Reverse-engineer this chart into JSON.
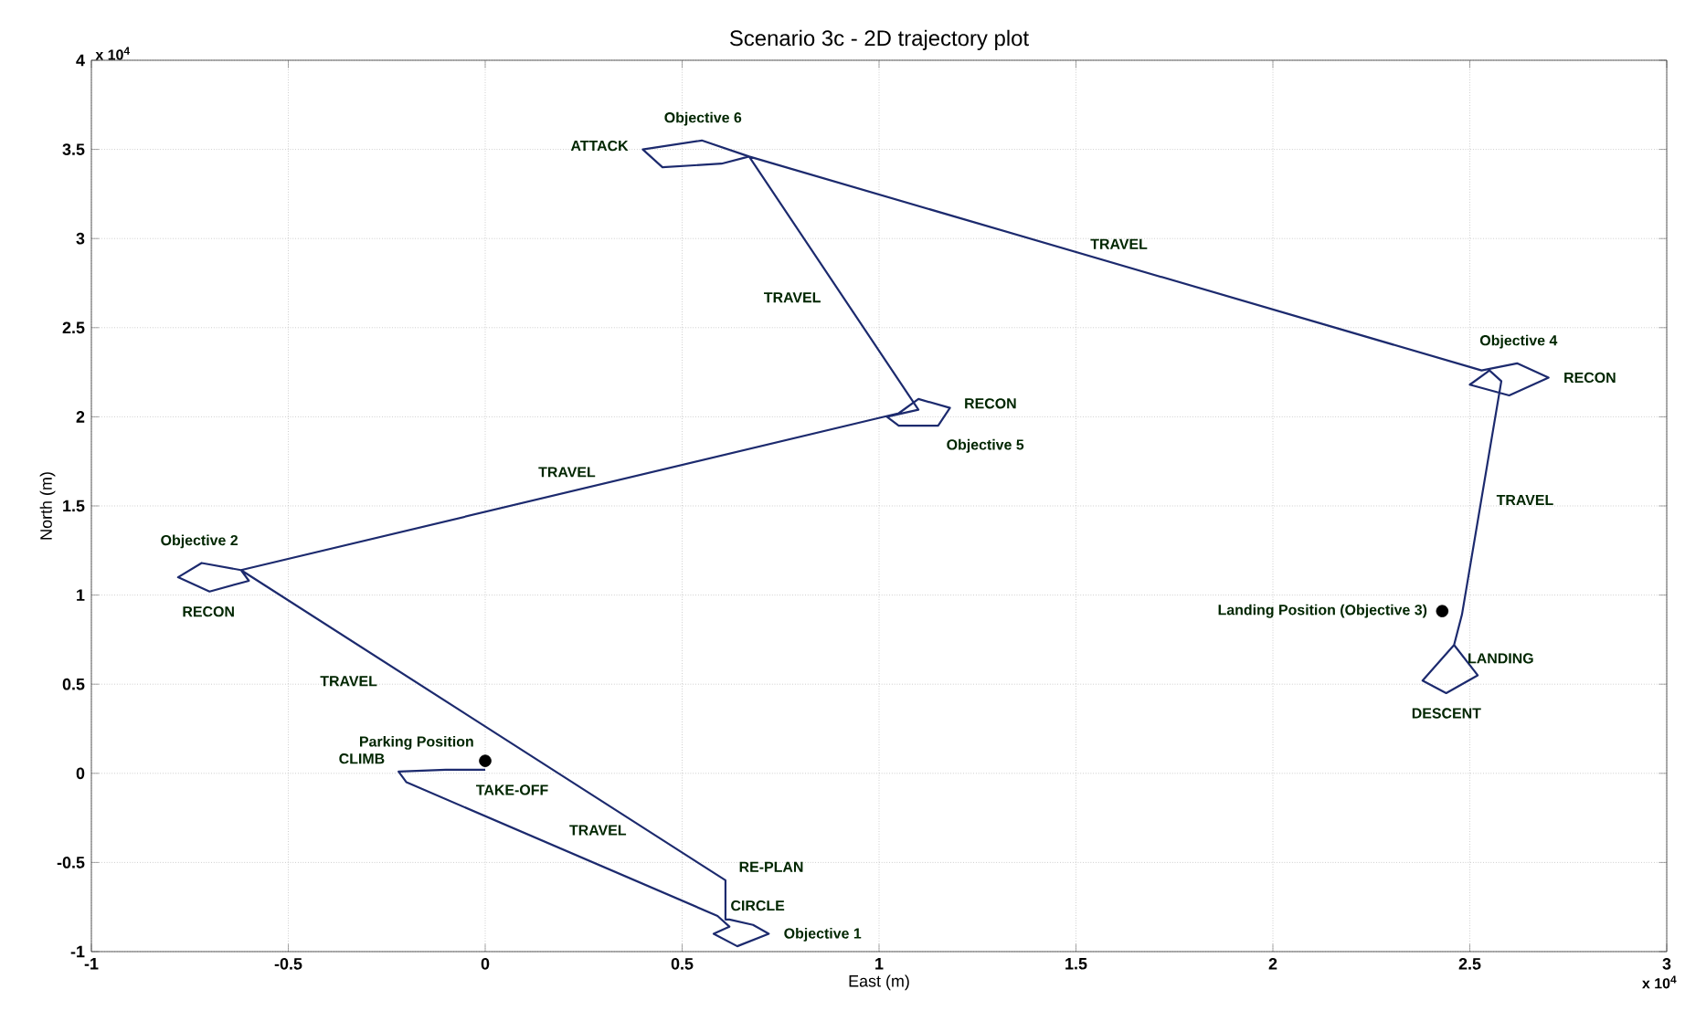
{
  "chart_data": {
    "type": "line",
    "title": "Scenario 3c - 2D trajectory plot",
    "xlabel": "East (m)",
    "ylabel": "North (m)",
    "xlim": [
      -1,
      3
    ],
    "ylim": [
      -1,
      4
    ],
    "xticks": [
      -1,
      -0.5,
      0,
      0.5,
      1,
      1.5,
      2,
      2.5,
      3
    ],
    "yticks": [
      -1,
      -0.5,
      0,
      0.5,
      1,
      1.5,
      2,
      2.5,
      3,
      3.5,
      4
    ],
    "grid": true,
    "series": [
      {
        "color": "#1c2a6e",
        "x": [
          0.0,
          -0.1,
          -0.22,
          -0.2,
          0.59,
          0.62,
          0.58,
          0.64,
          0.72,
          0.68,
          0.62,
          0.61,
          0.61,
          -0.62,
          -0.72,
          -0.78,
          -0.7,
          -0.6,
          -0.62,
          1.05,
          1.1,
          1.18,
          1.15,
          1.05,
          1.02,
          1.1,
          0.67,
          0.55,
          0.4,
          0.45,
          0.6,
          0.67,
          2.53,
          2.62,
          2.7,
          2.6,
          2.5,
          2.55,
          2.58,
          2.48,
          2.46,
          2.38,
          2.44,
          2.52,
          2.46
        ],
        "values": [
          0.02,
          0.02,
          0.01,
          -0.05,
          -0.8,
          -0.86,
          -0.9,
          -0.97,
          -0.9,
          -0.85,
          -0.82,
          -0.82,
          -0.6,
          1.14,
          1.18,
          1.1,
          1.02,
          1.08,
          1.14,
          2.02,
          2.1,
          2.05,
          1.95,
          1.95,
          2.0,
          2.04,
          3.46,
          3.55,
          3.5,
          3.4,
          3.42,
          3.46,
          2.26,
          2.3,
          2.22,
          2.12,
          2.18,
          2.26,
          2.2,
          0.89,
          0.72,
          0.52,
          0.45,
          0.55,
          0.72
        ]
      },
      {
        "type": "scatter",
        "color": "#000000",
        "x": [
          0.0,
          2.43
        ],
        "values": [
          0.07,
          0.91
        ]
      }
    ],
    "annotations": [
      {
        "text": "Objective 6",
        "x": 0.55,
        "y": 3.55
      },
      {
        "text": "ATTACK",
        "x": 0.4,
        "y": 3.5
      },
      {
        "text": "TRAVEL",
        "x": 0.885,
        "y": 2.75
      },
      {
        "text": "TRAVEL",
        "x": 1.6,
        "y": 2.86
      },
      {
        "text": "Objective 4",
        "x": 2.62,
        "y": 2.3
      },
      {
        "text": "RECON",
        "x": 2.7,
        "y": 2.22
      },
      {
        "text": "RECON",
        "x": 1.18,
        "y": 2.05
      },
      {
        "text": "Objective 5",
        "x": 1.15,
        "y": 1.95
      },
      {
        "text": "TRAVEL",
        "x": 0.215,
        "y": 1.58
      },
      {
        "text": "Objective 2",
        "x": -0.72,
        "y": 1.18
      },
      {
        "text": "RECON",
        "x": -0.7,
        "y": 1.02
      },
      {
        "text": "TRAVEL",
        "x": -0.251,
        "y": 0.618
      },
      {
        "text": "TRAVEL",
        "x": 2.53,
        "y": 1.545
      },
      {
        "text": "Landing Position (Objective 3)",
        "x": 2.43,
        "y": 0.91
      },
      {
        "text": "LANDING",
        "x": 2.46,
        "y": 0.72
      },
      {
        "text": "DESCENT",
        "x": 2.44,
        "y": 0.45
      },
      {
        "text": "Parking Position",
        "x": 0.0,
        "y": 0.07
      },
      {
        "text": "CLIMB",
        "x": -0.22,
        "y": 0.01
      },
      {
        "text": "TAKE-OFF",
        "x": -0.042,
        "y": -0.2
      },
      {
        "text": "RE-PLAN",
        "x": 0.61,
        "y": -0.6
      },
      {
        "text": "TRAVEL",
        "x": 0.195,
        "y": -0.425
      },
      {
        "text": "CIRCLE",
        "x": 0.68,
        "y": -0.85
      },
      {
        "text": "Objective 1",
        "x": 0.72,
        "y": -0.9
      },
      "x 10$^{4}$",
      "x 10$^{4}$"
    ]
  }
}
